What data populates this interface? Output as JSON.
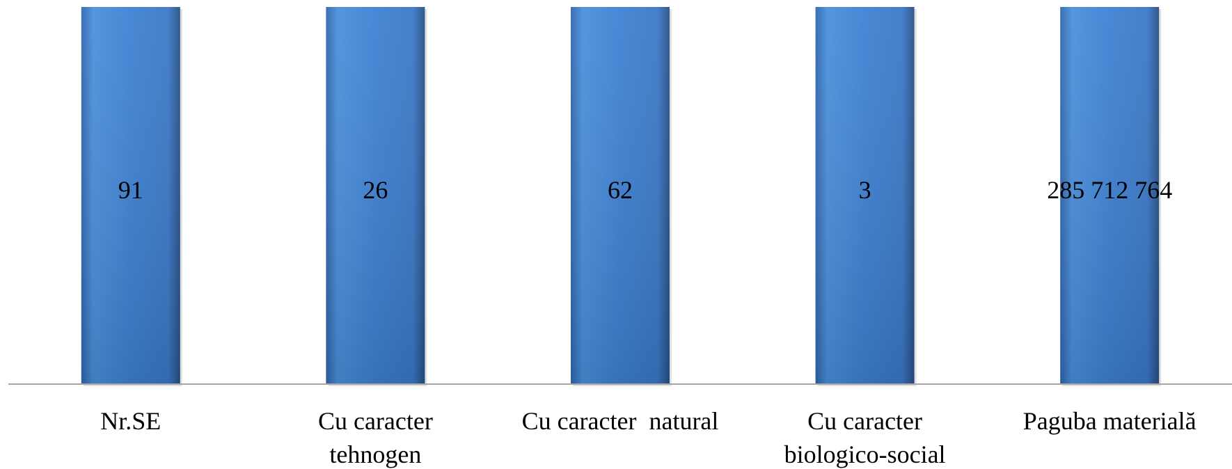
{
  "chart_data": {
    "type": "bar",
    "categories": [
      [
        "Nr.SE"
      ],
      [
        "Cu caracter",
        "tehnogen"
      ],
      [
        "Cu caracter  natural"
      ],
      [
        "Cu caracter",
        "biologico-social"
      ],
      [
        "Paguba materială"
      ]
    ],
    "data_labels": [
      "91",
      "26",
      "62",
      "3",
      "285 712 764"
    ],
    "values": [
      1,
      1,
      1,
      1,
      1
    ],
    "ylim": [
      0,
      1
    ],
    "title": "",
    "xlabel": "",
    "ylabel": "",
    "grid": false,
    "legend": "none",
    "colors": {
      "bar_light": "#4a90db",
      "bar_mid": "#3b7dd0",
      "bar_dark": "#2c5f9e",
      "axis": "#a6a6a6"
    }
  }
}
